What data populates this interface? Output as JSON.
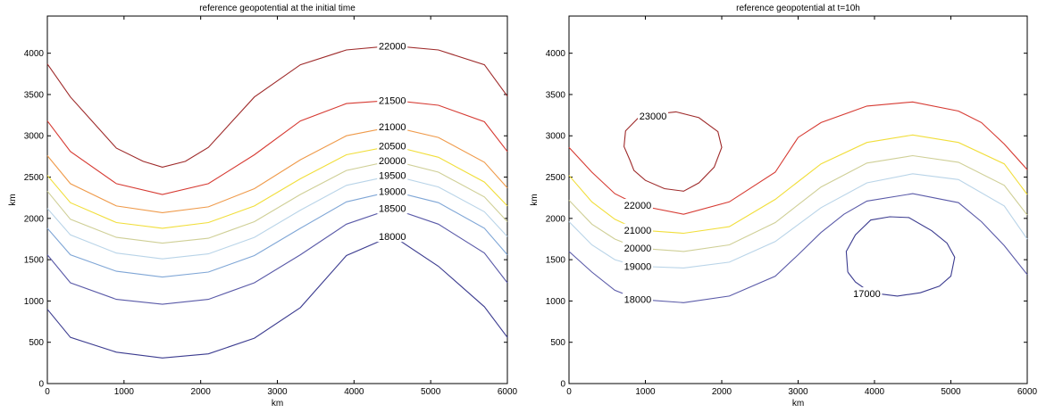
{
  "panels": [
    {
      "title": "reference geopotential at the initial time",
      "xlabel": "km",
      "ylabel": "km",
      "xticks": [
        "0",
        "1000",
        "2000",
        "3000",
        "4000",
        "5000",
        "6000"
      ],
      "yticks": [
        "0",
        "500",
        "1000",
        "1500",
        "2000",
        "2500",
        "3000",
        "3500",
        "4000"
      ]
    },
    {
      "title": "reference geopotential at t=10h",
      "xlabel": "km",
      "ylabel": "km",
      "xticks": [
        "0",
        "1000",
        "2000",
        "3000",
        "4000",
        "5000",
        "6000"
      ],
      "yticks": [
        "0",
        "500",
        "1000",
        "1500",
        "2000",
        "2500",
        "3000",
        "3500",
        "4000"
      ]
    }
  ],
  "chart_data": [
    {
      "type": "contour",
      "title": "reference geopotential at the initial time",
      "xlabel": "km",
      "ylabel": "km",
      "xlim": [
        0,
        6000
      ],
      "ylim": [
        0,
        4450
      ],
      "contours": [
        {
          "level": "18000",
          "color": "#3b3b8f",
          "label_at": [
            4500,
            1780
          ],
          "points": [
            [
              0,
              900
            ],
            [
              300,
              560
            ],
            [
              900,
              380
            ],
            [
              1500,
              310
            ],
            [
              2100,
              360
            ],
            [
              2700,
              550
            ],
            [
              3300,
              920
            ],
            [
              3900,
              1550
            ],
            [
              4500,
              1790
            ],
            [
              5100,
              1420
            ],
            [
              5700,
              930
            ],
            [
              6000,
              560
            ]
          ]
        },
        {
          "level": "18500",
          "color": "#5a5aa8",
          "label_at": [
            4500,
            2120
          ],
          "points": [
            [
              0,
              1560
            ],
            [
              300,
              1220
            ],
            [
              900,
              1020
            ],
            [
              1500,
              960
            ],
            [
              2100,
              1020
            ],
            [
              2700,
              1220
            ],
            [
              3300,
              1560
            ],
            [
              3900,
              1930
            ],
            [
              4500,
              2120
            ],
            [
              5100,
              1930
            ],
            [
              5700,
              1580
            ],
            [
              6000,
              1220
            ]
          ]
        },
        {
          "level": "19000",
          "color": "#7fa6d6",
          "label_at": [
            4500,
            2330
          ],
          "points": [
            [
              0,
              1880
            ],
            [
              300,
              1560
            ],
            [
              900,
              1360
            ],
            [
              1500,
              1290
            ],
            [
              2100,
              1350
            ],
            [
              2700,
              1550
            ],
            [
              3300,
              1880
            ],
            [
              3900,
              2200
            ],
            [
              4500,
              2330
            ],
            [
              5100,
              2190
            ],
            [
              5700,
              1880
            ],
            [
              6000,
              1560
            ]
          ]
        },
        {
          "level": "19500",
          "color": "#b9d4e8",
          "label_at": [
            4500,
            2520
          ],
          "points": [
            [
              0,
              2120
            ],
            [
              300,
              1800
            ],
            [
              900,
              1580
            ],
            [
              1500,
              1510
            ],
            [
              2100,
              1570
            ],
            [
              2700,
              1770
            ],
            [
              3300,
              2100
            ],
            [
              3900,
              2400
            ],
            [
              4500,
              2520
            ],
            [
              5100,
              2380
            ],
            [
              5700,
              2080
            ],
            [
              6000,
              1780
            ]
          ]
        },
        {
          "level": "20000",
          "color": "#cfcf96",
          "label_at": [
            4500,
            2700
          ],
          "points": [
            [
              0,
              2330
            ],
            [
              300,
              1990
            ],
            [
              900,
              1770
            ],
            [
              1500,
              1700
            ],
            [
              2100,
              1760
            ],
            [
              2700,
              1960
            ],
            [
              3300,
              2290
            ],
            [
              3900,
              2580
            ],
            [
              4500,
              2700
            ],
            [
              5100,
              2560
            ],
            [
              5700,
              2260
            ],
            [
              6000,
              1960
            ]
          ]
        },
        {
          "level": "20500",
          "color": "#f1de3a",
          "label_at": [
            4500,
            2880
          ],
          "points": [
            [
              0,
              2520
            ],
            [
              300,
              2190
            ],
            [
              900,
              1950
            ],
            [
              1500,
              1880
            ],
            [
              2100,
              1950
            ],
            [
              2700,
              2150
            ],
            [
              3300,
              2480
            ],
            [
              3900,
              2770
            ],
            [
              4500,
              2880
            ],
            [
              5100,
              2740
            ],
            [
              5700,
              2440
            ],
            [
              6000,
              2150
            ]
          ]
        },
        {
          "level": "21000",
          "color": "#ef9a4a",
          "label_at": [
            4500,
            3110
          ],
          "points": [
            [
              0,
              2760
            ],
            [
              300,
              2420
            ],
            [
              900,
              2150
            ],
            [
              1500,
              2070
            ],
            [
              2100,
              2140
            ],
            [
              2700,
              2360
            ],
            [
              3300,
              2710
            ],
            [
              3900,
              3000
            ],
            [
              4500,
              3110
            ],
            [
              5100,
              2980
            ],
            [
              5700,
              2680
            ],
            [
              6000,
              2370
            ]
          ]
        },
        {
          "level": "21500",
          "color": "#d63a32",
          "label_at": [
            4500,
            3430
          ],
          "points": [
            [
              0,
              3180
            ],
            [
              300,
              2810
            ],
            [
              900,
              2420
            ],
            [
              1500,
              2290
            ],
            [
              2100,
              2420
            ],
            [
              2700,
              2770
            ],
            [
              3300,
              3180
            ],
            [
              3900,
              3390
            ],
            [
              4500,
              3430
            ],
            [
              5100,
              3370
            ],
            [
              5700,
              3170
            ],
            [
              6000,
              2810
            ]
          ]
        },
        {
          "level": "22000",
          "color": "#9e2a2a",
          "label_at": [
            4500,
            4090
          ],
          "points": [
            [
              0,
              3870
            ],
            [
              300,
              3470
            ],
            [
              900,
              2850
            ],
            [
              1250,
              2690
            ],
            [
              1500,
              2620
            ],
            [
              1800,
              2690
            ],
            [
              2100,
              2860
            ],
            [
              2700,
              3470
            ],
            [
              3300,
              3860
            ],
            [
              3900,
              4040
            ],
            [
              4500,
              4090
            ],
            [
              5100,
              4040
            ],
            [
              5700,
              3860
            ],
            [
              6000,
              3480
            ]
          ]
        }
      ]
    },
    {
      "type": "contour",
      "title": "reference geopotential at t=10h",
      "xlabel": "km",
      "ylabel": "km",
      "xlim": [
        0,
        6000
      ],
      "ylim": [
        0,
        4450
      ],
      "contours": [
        {
          "level": "17000",
          "color": "#3b3b8f",
          "label_at": [
            3900,
            1090
          ],
          "points": [
            [
              3650,
              1350
            ],
            [
              3630,
              1600
            ],
            [
              3750,
              1800
            ],
            [
              3950,
              1980
            ],
            [
              4200,
              2020
            ],
            [
              4450,
              2010
            ],
            [
              4750,
              1850
            ],
            [
              4950,
              1700
            ],
            [
              5050,
              1530
            ],
            [
              5000,
              1300
            ],
            [
              4850,
              1180
            ],
            [
              4600,
              1100
            ],
            [
              4300,
              1060
            ],
            [
              3950,
              1100
            ],
            [
              3750,
              1230
            ],
            [
              3650,
              1350
            ]
          ]
        },
        {
          "level": "18000",
          "color": "#5a5aa8",
          "label_at": [
            900,
            1020
          ],
          "points": [
            [
              0,
              1600
            ],
            [
              300,
              1350
            ],
            [
              600,
              1130
            ],
            [
              900,
              1020
            ],
            [
              1500,
              980
            ],
            [
              2100,
              1060
            ],
            [
              2700,
              1300
            ],
            [
              3000,
              1560
            ],
            [
              3300,
              1830
            ],
            [
              3600,
              2050
            ],
            [
              3900,
              2210
            ],
            [
              4500,
              2300
            ],
            [
              5100,
              2190
            ],
            [
              5400,
              1960
            ],
            [
              5700,
              1670
            ],
            [
              6000,
              1320
            ]
          ]
        },
        {
          "level": "19000",
          "color": "#b9d4e8",
          "label_at": [
            900,
            1420
          ],
          "points": [
            [
              0,
              1960
            ],
            [
              300,
              1680
            ],
            [
              600,
              1500
            ],
            [
              900,
              1420
            ],
            [
              1500,
              1400
            ],
            [
              2100,
              1470
            ],
            [
              2700,
              1720
            ],
            [
              3300,
              2130
            ],
            [
              3900,
              2430
            ],
            [
              4500,
              2540
            ],
            [
              5100,
              2470
            ],
            [
              5700,
              2150
            ],
            [
              6000,
              1750
            ]
          ]
        },
        {
          "level": "20000",
          "color": "#cfcf96",
          "label_at": [
            900,
            1640
          ],
          "points": [
            [
              0,
              2220
            ],
            [
              300,
              1930
            ],
            [
              600,
              1750
            ],
            [
              900,
              1640
            ],
            [
              1500,
              1600
            ],
            [
              2100,
              1680
            ],
            [
              2700,
              1950
            ],
            [
              3300,
              2380
            ],
            [
              3900,
              2670
            ],
            [
              4500,
              2760
            ],
            [
              5100,
              2680
            ],
            [
              5700,
              2400
            ],
            [
              6000,
              2040
            ]
          ]
        },
        {
          "level": "21000",
          "color": "#f1de3a",
          "label_at": [
            900,
            1860
          ],
          "points": [
            [
              0,
              2520
            ],
            [
              300,
              2200
            ],
            [
              600,
              1990
            ],
            [
              900,
              1860
            ],
            [
              1500,
              1820
            ],
            [
              2100,
              1900
            ],
            [
              2700,
              2230
            ],
            [
              3300,
              2660
            ],
            [
              3900,
              2920
            ],
            [
              4500,
              3010
            ],
            [
              5100,
              2920
            ],
            [
              5700,
              2660
            ],
            [
              6000,
              2290
            ]
          ]
        },
        {
          "level": "22000",
          "color": "#d63a32",
          "label_at": [
            900,
            2160
          ],
          "points": [
            [
              0,
              2860
            ],
            [
              300,
              2560
            ],
            [
              600,
              2300
            ],
            [
              900,
              2160
            ],
            [
              1500,
              2050
            ],
            [
              2100,
              2200
            ],
            [
              2700,
              2560
            ],
            [
              3000,
              2980
            ],
            [
              3300,
              3160
            ],
            [
              3900,
              3360
            ],
            [
              4500,
              3410
            ],
            [
              5100,
              3300
            ],
            [
              5400,
              3160
            ],
            [
              5700,
              2900
            ],
            [
              6000,
              2590
            ]
          ]
        },
        {
          "level": "23000",
          "color": "#9e2a2a",
          "label_at": [
            1100,
            3240
          ],
          "points": [
            [
              800,
              2700
            ],
            [
              720,
              2870
            ],
            [
              740,
              3060
            ],
            [
              900,
              3210
            ],
            [
              1100,
              3260
            ],
            [
              1400,
              3290
            ],
            [
              1700,
              3220
            ],
            [
              1950,
              3050
            ],
            [
              2000,
              2860
            ],
            [
              1900,
              2620
            ],
            [
              1700,
              2430
            ],
            [
              1500,
              2330
            ],
            [
              1250,
              2360
            ],
            [
              1000,
              2460
            ],
            [
              850,
              2580
            ],
            [
              800,
              2700
            ]
          ]
        }
      ]
    }
  ]
}
